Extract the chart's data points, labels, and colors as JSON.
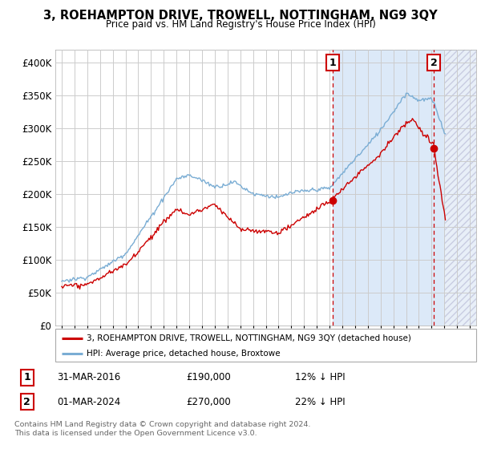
{
  "title": "3, ROEHAMPTON DRIVE, TROWELL, NOTTINGHAM, NG9 3QY",
  "subtitle": "Price paid vs. HM Land Registry's House Price Index (HPI)",
  "legend_line1": "3, ROEHAMPTON DRIVE, TROWELL, NOTTINGHAM, NG9 3QY (detached house)",
  "legend_line2": "HPI: Average price, detached house, Broxtowe",
  "sale1_date": "31-MAR-2016",
  "sale1_price": 190000,
  "sale1_label": "12% ↓ HPI",
  "sale2_date": "01-MAR-2024",
  "sale2_price": 270000,
  "sale2_label": "22% ↓ HPI",
  "copyright": "Contains HM Land Registry data © Crown copyright and database right 2024.\nThis data is licensed under the Open Government Licence v3.0.",
  "fig_bg": "#ffffff",
  "plot_bg": "#ffffff",
  "shade_color": "#dce9f8",
  "hatch_bg": "#e8eff8",
  "grid_color": "#cccccc",
  "red_color": "#cc0000",
  "blue_color": "#7aadd4",
  "legend_border": "#aaaaaa",
  "ylim": [
    0,
    420000
  ],
  "yticks": [
    0,
    50000,
    100000,
    150000,
    200000,
    250000,
    300000,
    350000,
    400000
  ],
  "sale1_x": 2016.25,
  "sale2_x": 2024.17,
  "xmin": 1994.5,
  "xmax": 2027.5
}
